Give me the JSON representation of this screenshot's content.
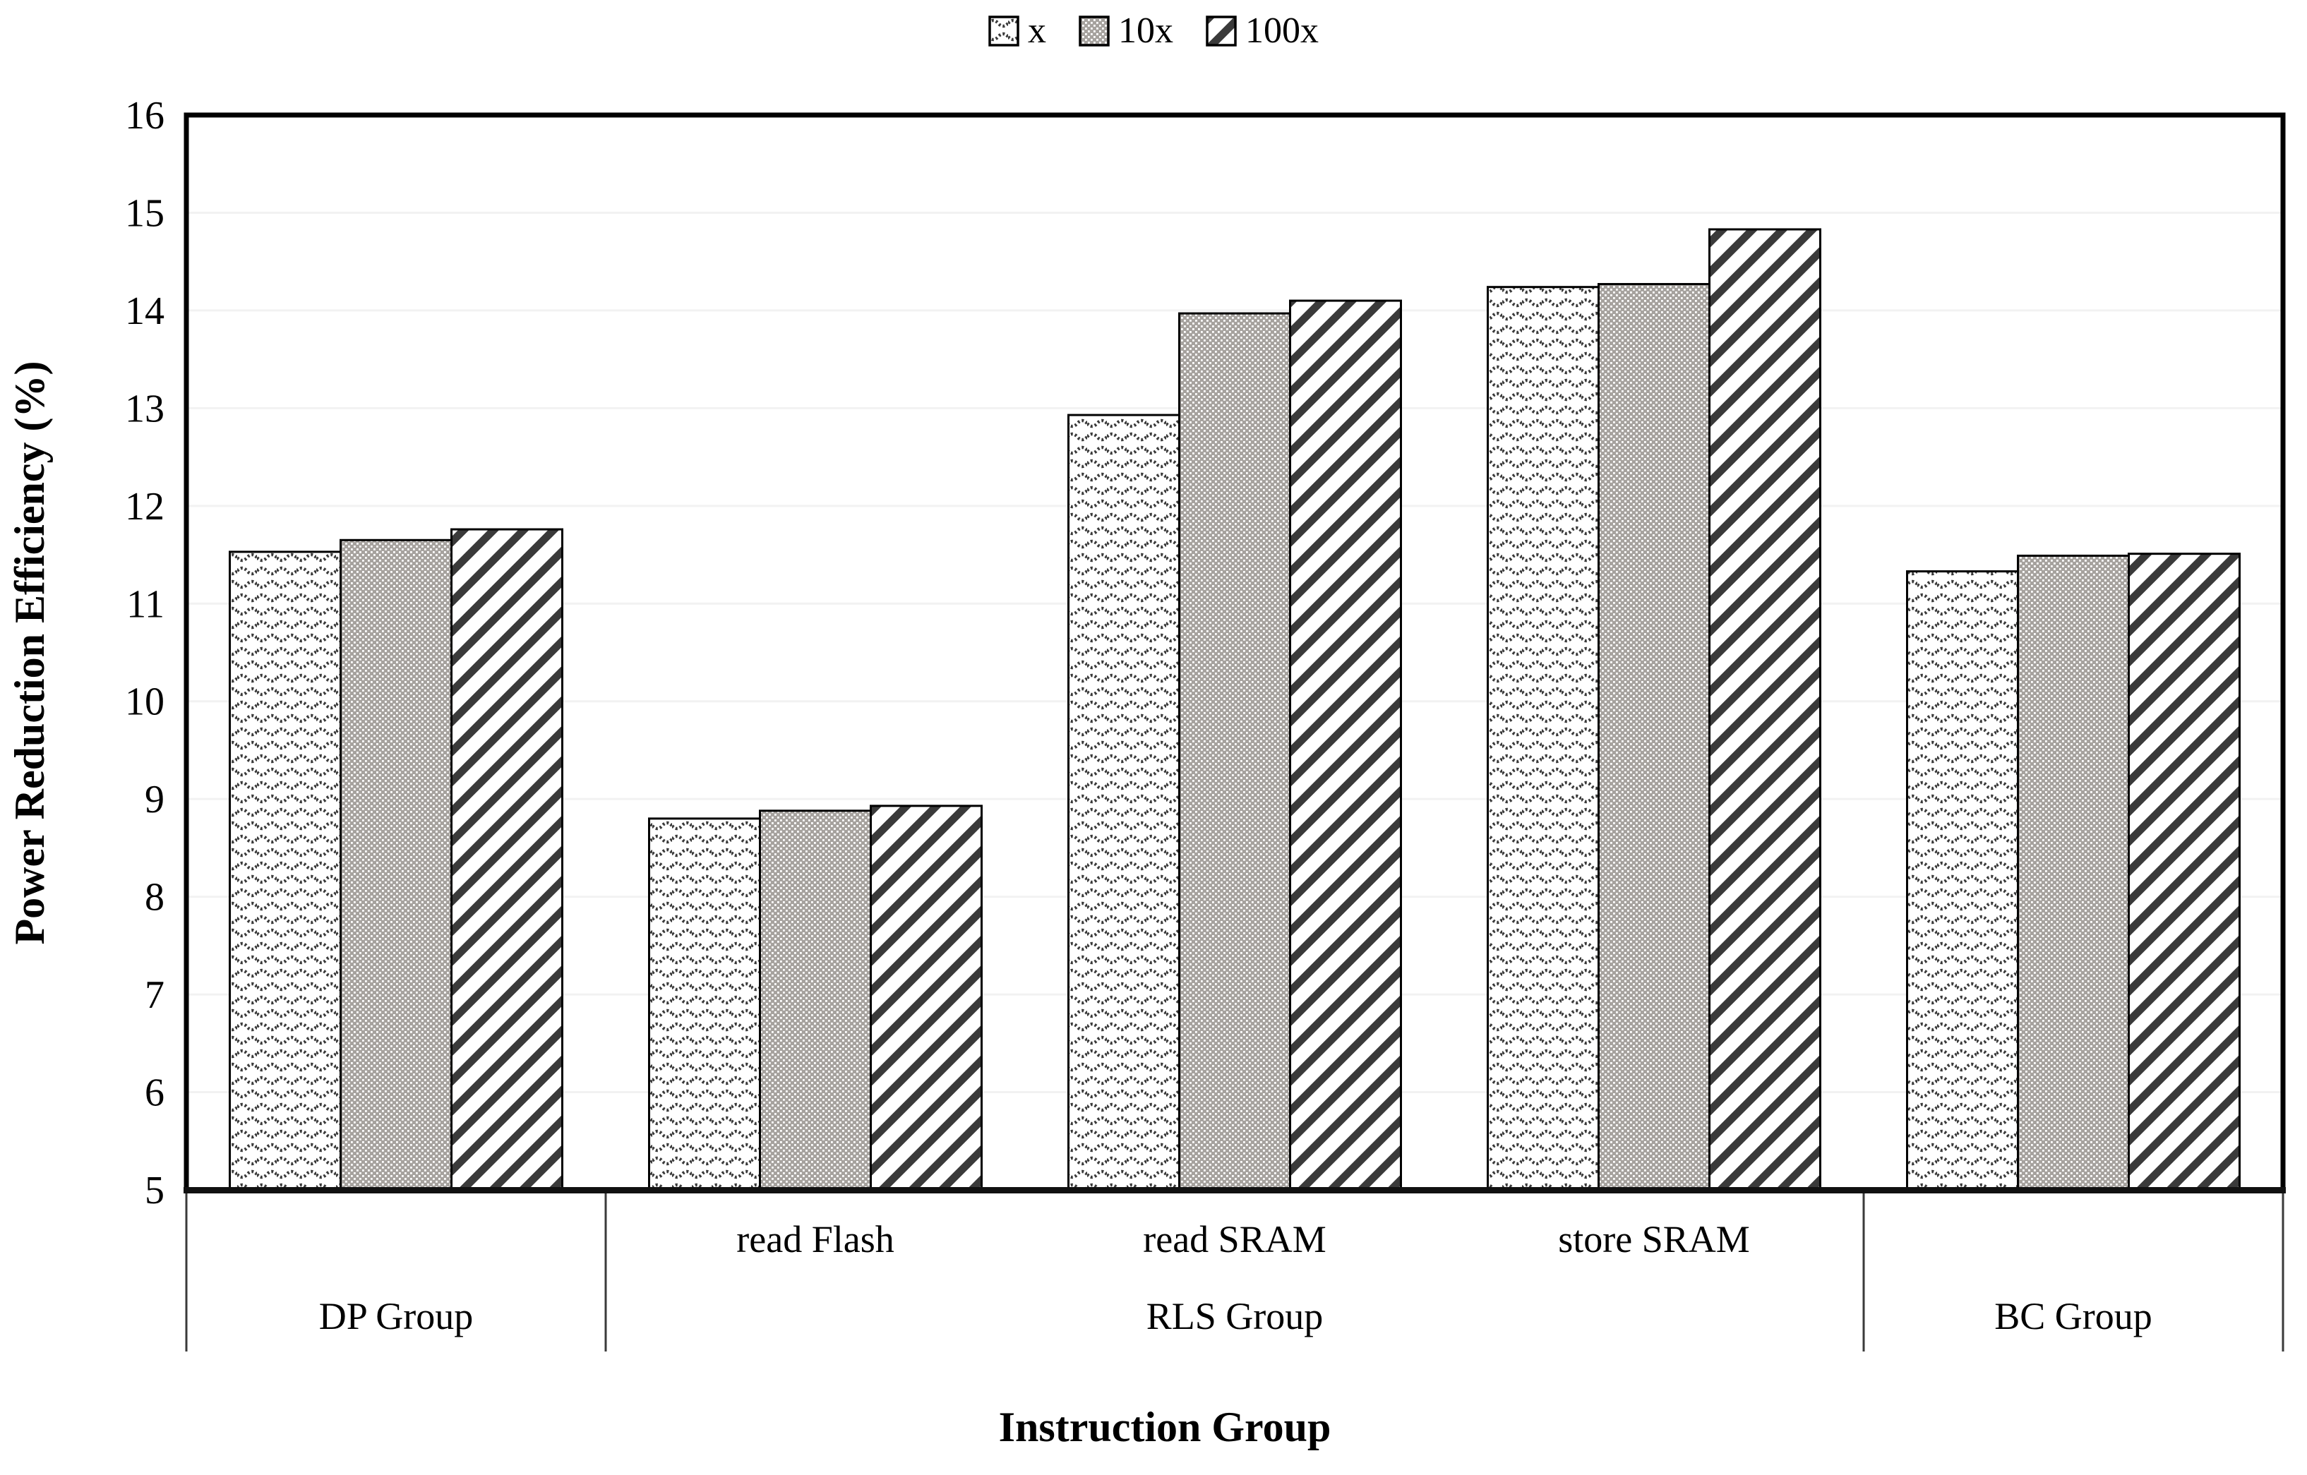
{
  "legend": {
    "items": [
      {
        "label": "x",
        "pattern": "dotted-wave"
      },
      {
        "label": "10x",
        "pattern": "gray-dot-grid"
      },
      {
        "label": "100x",
        "pattern": "diagonal-stripe"
      }
    ]
  },
  "axes": {
    "y_title": "Power Reduction Efficiency (%)",
    "x_title": "Instruction Group",
    "y_ticks": [
      16,
      15,
      14,
      13,
      12,
      11,
      10,
      9,
      8,
      7,
      6,
      5
    ]
  },
  "chart_data": {
    "type": "bar",
    "title": "",
    "ylabel": "Power Reduction Efficiency (%)",
    "xlabel": "Instruction Group",
    "ylim": [
      5,
      16
    ],
    "grid": true,
    "legend_position": "top-center",
    "groups": [
      {
        "label": "DP Group",
        "slots": [
          ""
        ]
      },
      {
        "label": "RLS Group",
        "slots": [
          "read Flash",
          "read SRAM",
          "store SRAM"
        ]
      },
      {
        "label": "BC Group",
        "slots": [
          ""
        ]
      }
    ],
    "slot_order": [
      "DP Group",
      "read Flash",
      "read SRAM",
      "store SRAM",
      "BC Group"
    ],
    "series": [
      {
        "name": "x",
        "pattern": "dotted-wave",
        "values": [
          11.53,
          8.8,
          12.93,
          14.24,
          11.33
        ]
      },
      {
        "name": "10x",
        "pattern": "gray-dot-grid",
        "values": [
          11.65,
          8.88,
          13.97,
          14.27,
          11.49
        ]
      },
      {
        "name": "100x",
        "pattern": "diagonal-stripe",
        "values": [
          11.76,
          8.93,
          14.1,
          14.83,
          11.51
        ]
      }
    ]
  },
  "colors": {
    "bar_outline": "#000000",
    "pattern_dark": "#3a3a3a",
    "pattern_gray_bg": "#a6a29e",
    "gridline": "#f2f2f2",
    "axis_line": "#111111",
    "divider": "#3a3a3a",
    "text": "#000000"
  }
}
